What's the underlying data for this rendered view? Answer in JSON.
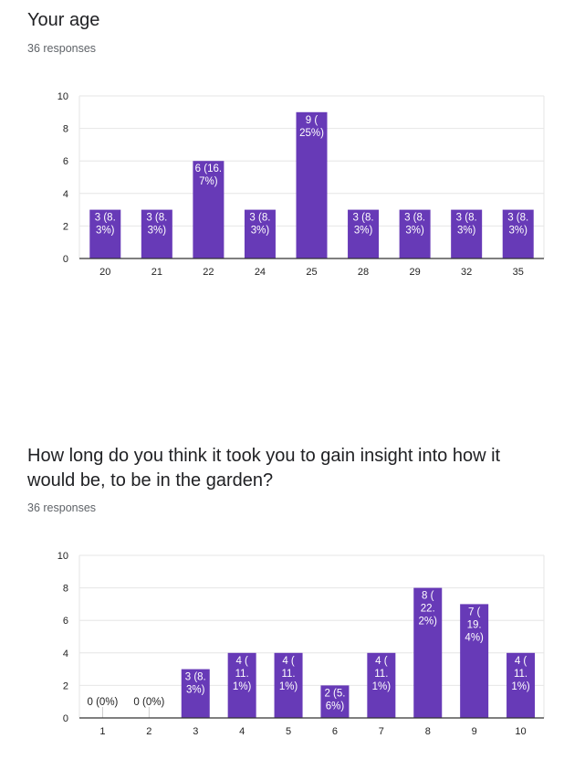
{
  "questions": [
    {
      "title": "Your age",
      "responses": "36 responses"
    },
    {
      "title": "How long do you think it took you to gain insight into how it would be, to be in the garden?",
      "responses": "36 responses"
    }
  ],
  "chart_data": [
    {
      "type": "bar",
      "title": "Your age",
      "categories": [
        "20",
        "21",
        "22",
        "24",
        "25",
        "28",
        "29",
        "32",
        "35"
      ],
      "values": [
        3,
        3,
        6,
        3,
        9,
        3,
        3,
        3,
        3
      ],
      "labels": [
        [
          "3 (8.",
          "3%)"
        ],
        [
          "3 (8.",
          "3%)"
        ],
        [
          "6 (16.",
          "7%)"
        ],
        [
          "3 (8.",
          "3%)"
        ],
        [
          "9 (",
          "25%)"
        ],
        [
          "3 (8.",
          "3%)"
        ],
        [
          "3 (8.",
          "3%)"
        ],
        [
          "3 (8.",
          "3%)"
        ],
        [
          "3 (8.",
          "3%)"
        ]
      ],
      "yticks": [
        0,
        2,
        4,
        6,
        8,
        10
      ],
      "ylim": [
        0,
        10
      ],
      "grid": true,
      "color": "#673ab7"
    },
    {
      "type": "bar",
      "title": "How long do you think it took you to gain insight into how it would be, to be in the garden?",
      "categories": [
        "1",
        "2",
        "3",
        "4",
        "5",
        "6",
        "7",
        "8",
        "9",
        "10"
      ],
      "values": [
        0,
        0,
        3,
        4,
        4,
        2,
        4,
        8,
        7,
        4
      ],
      "labels": [
        [
          "0 (0%)"
        ],
        [
          "0 (0%)"
        ],
        [
          "3 (8.",
          "3%)"
        ],
        [
          "4 (",
          "11.",
          "1%)"
        ],
        [
          "4 (",
          "11.",
          "1%)"
        ],
        [
          "2 (5.",
          "6%)"
        ],
        [
          "4 (",
          "11.",
          "1%)"
        ],
        [
          "8 (",
          "22.",
          "2%)"
        ],
        [
          "7 (",
          "19.",
          "4%)"
        ],
        [
          "4 (",
          "11.",
          "1%)"
        ]
      ],
      "yticks": [
        0,
        2,
        4,
        6,
        8,
        10
      ],
      "ylim": [
        0,
        10
      ],
      "grid": true,
      "color": "#673ab7"
    }
  ]
}
